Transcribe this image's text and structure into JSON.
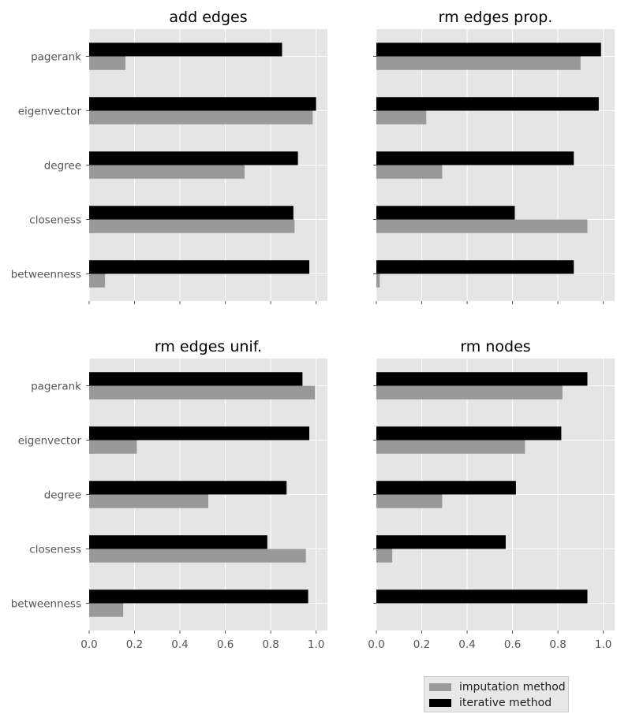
{
  "colors": {
    "imputation": "#999999",
    "iterative": "#000000",
    "panel_bg": "#e5e5e5",
    "grid": "#ffffff"
  },
  "legend": {
    "imputation_label": "imputation method",
    "iterative_label": "iterative method",
    "placement": "bottom-right"
  },
  "chart_data": [
    {
      "type": "bar",
      "orientation": "horizontal",
      "title": "add edges",
      "categories": [
        "pagerank",
        "eigenvector",
        "degree",
        "closeness",
        "betweenness"
      ],
      "series": [
        {
          "name": "iterative method",
          "values": [
            0.85,
            1.0,
            0.92,
            0.9,
            0.97
          ]
        },
        {
          "name": "imputation method",
          "values": [
            0.16,
            0.985,
            0.685,
            0.905,
            0.07
          ]
        }
      ],
      "xlim": [
        0,
        1.05
      ],
      "xticks": [
        "0.0",
        "0.2",
        "0.4",
        "0.6",
        "0.8",
        "1.0"
      ],
      "show_xtick_labels": false,
      "show_ytick_labels": true,
      "grid": true
    },
    {
      "type": "bar",
      "orientation": "horizontal",
      "title": "rm edges prop.",
      "categories": [
        "pagerank",
        "eigenvector",
        "degree",
        "closeness",
        "betweenness"
      ],
      "series": [
        {
          "name": "iterative method",
          "values": [
            0.99,
            0.98,
            0.87,
            0.61,
            0.87
          ]
        },
        {
          "name": "imputation method",
          "values": [
            0.9,
            0.22,
            0.29,
            0.93,
            0.015
          ]
        }
      ],
      "xlim": [
        0,
        1.05
      ],
      "xticks": [
        "0.0",
        "0.2",
        "0.4",
        "0.6",
        "0.8",
        "1.0"
      ],
      "show_xtick_labels": false,
      "show_ytick_labels": false,
      "grid": true
    },
    {
      "type": "bar",
      "orientation": "horizontal",
      "title": "rm edges unif.",
      "categories": [
        "pagerank",
        "eigenvector",
        "degree",
        "closeness",
        "betweenness"
      ],
      "series": [
        {
          "name": "iterative method",
          "values": [
            0.94,
            0.97,
            0.87,
            0.785,
            0.965
          ]
        },
        {
          "name": "imputation method",
          "values": [
            0.995,
            0.21,
            0.525,
            0.955,
            0.15
          ]
        }
      ],
      "xlim": [
        0,
        1.05
      ],
      "xticks": [
        "0.0",
        "0.2",
        "0.4",
        "0.6",
        "0.8",
        "1.0"
      ],
      "show_xtick_labels": true,
      "show_ytick_labels": true,
      "grid": true
    },
    {
      "type": "bar",
      "orientation": "horizontal",
      "title": "rm nodes",
      "categories": [
        "pagerank",
        "eigenvector",
        "degree",
        "closeness",
        "betweenness"
      ],
      "series": [
        {
          "name": "iterative method",
          "values": [
            0.93,
            0.815,
            0.615,
            0.57,
            0.93
          ]
        },
        {
          "name": "imputation method",
          "values": [
            0.82,
            0.655,
            0.29,
            0.07,
            0.0
          ]
        }
      ],
      "xlim": [
        0,
        1.05
      ],
      "xticks": [
        "0.0",
        "0.2",
        "0.4",
        "0.6",
        "0.8",
        "1.0"
      ],
      "show_xtick_labels": true,
      "show_ytick_labels": false,
      "grid": true
    }
  ]
}
